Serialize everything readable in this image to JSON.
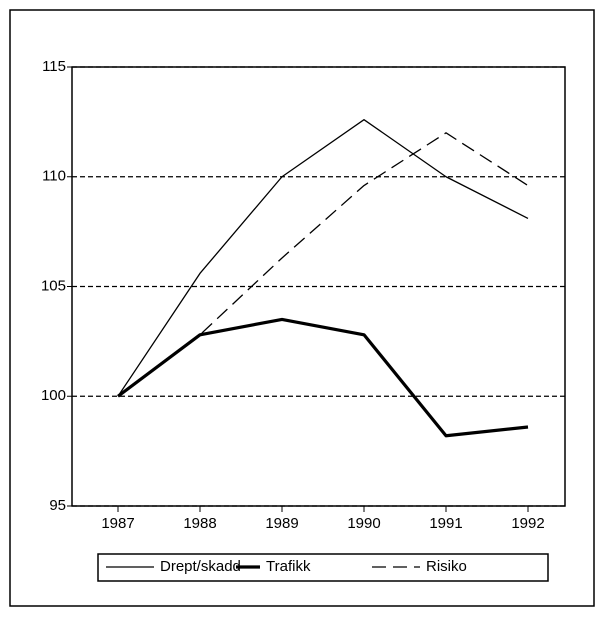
{
  "chart_data": {
    "type": "line",
    "categories": [
      "1987",
      "1988",
      "1989",
      "1990",
      "1991",
      "1992"
    ],
    "series": [
      {
        "name": "Drept/skadd",
        "color": "#000000",
        "line_width": 1.3,
        "dashed": false,
        "values": [
          100,
          105.6,
          110,
          112.6,
          110,
          108.1
        ]
      },
      {
        "name": "Trafikk",
        "color": "#000000",
        "line_width": 3.2,
        "dashed": false,
        "values": [
          100,
          102.8,
          103.5,
          102.8,
          98.2,
          98.6
        ]
      },
      {
        "name": "Risiko",
        "color": "#000000",
        "line_width": 1.3,
        "dashed": true,
        "values": [
          100,
          102.8,
          106.3,
          109.6,
          112,
          109.6
        ]
      }
    ],
    "ylim": [
      95,
      115
    ],
    "yticks": [
      95,
      100,
      105,
      110,
      115
    ],
    "grid": true,
    "legend": "bottom"
  }
}
